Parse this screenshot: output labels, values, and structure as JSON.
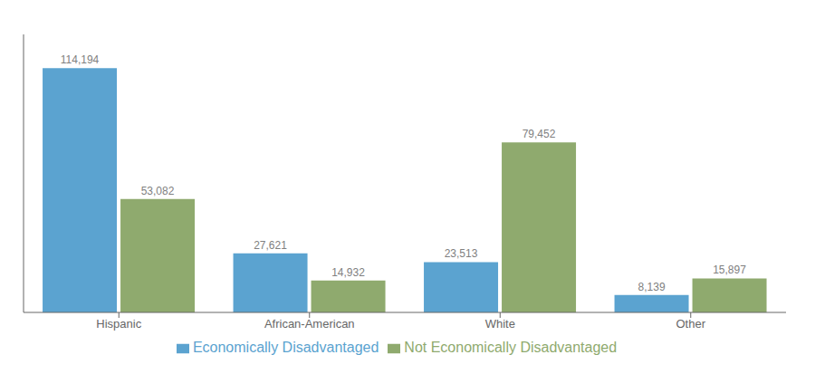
{
  "chart_data": {
    "type": "bar",
    "categories": [
      "Hispanic",
      "African-American",
      "White",
      "Other"
    ],
    "series": [
      {
        "name": "Economically Disadvantaged",
        "color": "#5ba3d0",
        "values": [
          114194,
          27621,
          23513,
          8139
        ],
        "value_labels": [
          "114,194",
          "27,621",
          "23,513",
          "8,139"
        ]
      },
      {
        "name": "Not Economically Disadvantaged",
        "color": "#8faa6e",
        "values": [
          53082,
          14932,
          79452,
          15897
        ],
        "value_labels": [
          "53,082",
          "14,932",
          "79,452",
          "15,897"
        ]
      }
    ],
    "ylim": [
      0,
      130000
    ],
    "grid": false,
    "legend": "bottom",
    "data_labels": true,
    "tick_labels": "x"
  }
}
